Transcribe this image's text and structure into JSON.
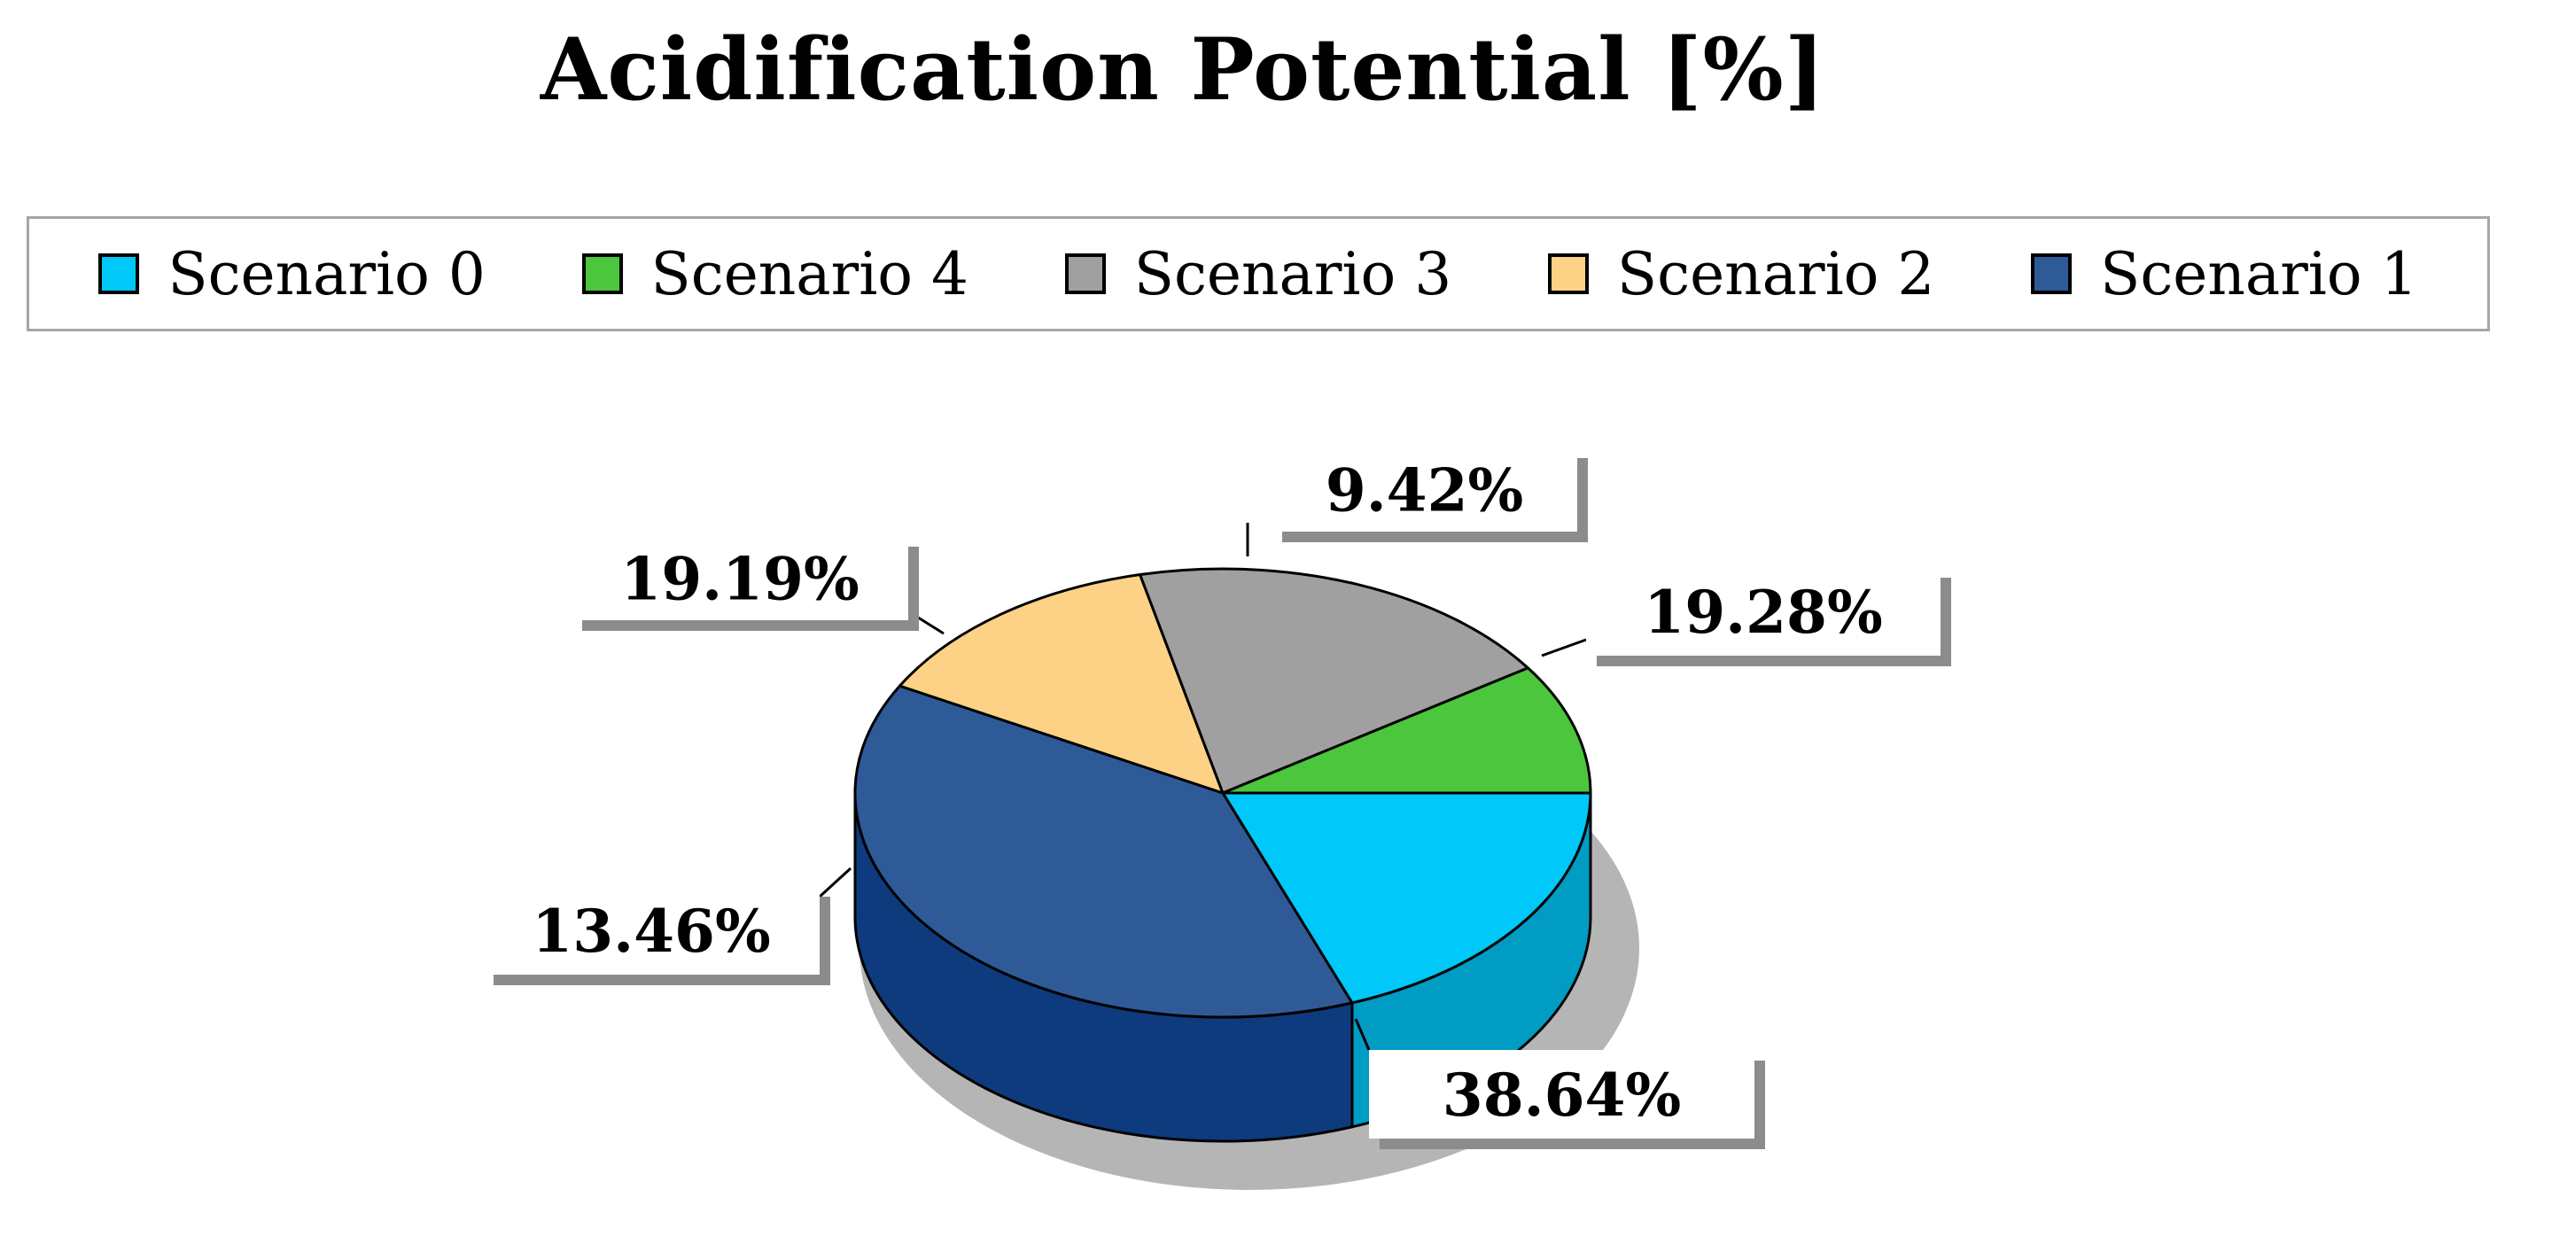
{
  "chart_data": {
    "type": "pie",
    "title": "Acidification Potential [%]",
    "legend_position": "top",
    "legend": [
      "Scenario 0",
      "Scenario 4",
      "Scenario 3",
      "Scenario 2",
      "Scenario 1"
    ],
    "slices": [
      {
        "name": "Scenario 0",
        "value": 19.28,
        "label": "19.28%",
        "color": "#00c8f8",
        "side_color": "#009cc4"
      },
      {
        "name": "Scenario 1",
        "value": 38.64,
        "label": "38.64%",
        "color": "#2e5a98",
        "side_color": "#0e3b7d"
      },
      {
        "name": "Scenario 2",
        "value": 13.46,
        "label": "13.46%",
        "color": "#fdd286",
        "side_color": "#e6b45e"
      },
      {
        "name": "Scenario 3",
        "value": 19.19,
        "label": "19.19%",
        "color": "#a0a0a0",
        "side_color": "#7c7c7c"
      },
      {
        "name": "Scenario 4",
        "value": 9.42,
        "label": "9.42%",
        "color": "#4cc63c",
        "side_color": "#2f9a22"
      }
    ]
  }
}
